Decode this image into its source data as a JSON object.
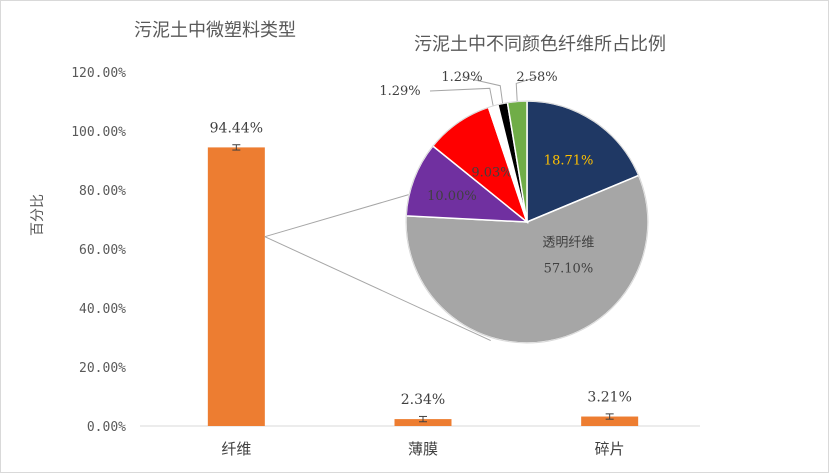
{
  "chart_data": [
    {
      "type": "bar",
      "title": "污泥土中微塑料类型",
      "ylabel": "百分比",
      "categories": [
        "纤维",
        "薄膜",
        "碎片"
      ],
      "values": [
        94.44,
        2.34,
        3.21
      ],
      "data_labels": [
        "94.44%",
        "2.34%",
        "3.21%"
      ],
      "error_bars": true,
      "ylim": [
        0,
        120
      ],
      "yticks": [
        "0.00%",
        "20.00%",
        "40.00%",
        "60.00%",
        "80.00%",
        "100.00%",
        "120.00%"
      ],
      "bar_color": "#ed7d31",
      "grid": false
    },
    {
      "type": "pie",
      "title": "污泥土中不同颜色纤维所占比例",
      "slices": [
        {
          "value": 18.71,
          "label": "18.71%",
          "color": "#1f3864",
          "text_color": "#ffc000"
        },
        {
          "value": 57.1,
          "label": "57.10%",
          "name": "透明纤维",
          "color": "#a6a6a6",
          "text_color": "#404040"
        },
        {
          "value": 10.0,
          "label": "10.00%",
          "color": "#7030a0",
          "text_color": "#404040"
        },
        {
          "value": 9.03,
          "label": "9.03%",
          "color": "#ff0000",
          "text_color": "#404040"
        },
        {
          "value": 1.29,
          "label": "1.29%",
          "color": "#ffffff",
          "text_color": "#404040"
        },
        {
          "value": 1.29,
          "label": "1.29%",
          "color": "#000000",
          "text_color": "#404040"
        },
        {
          "value": 2.58,
          "label": "2.58%",
          "color": "#70ad47",
          "text_color": "#404040"
        }
      ]
    }
  ]
}
